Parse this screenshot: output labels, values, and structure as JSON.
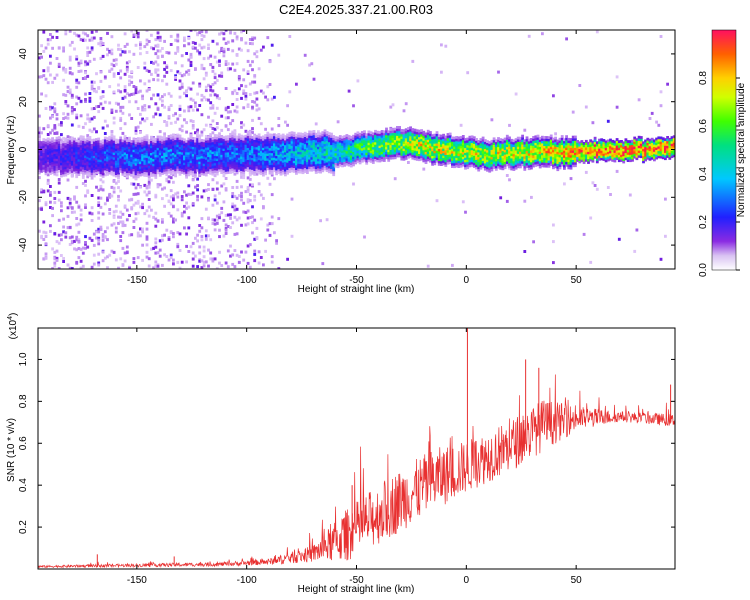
{
  "title": "C2E4.2025.337.21.00.R03",
  "colorbar": {
    "label": "Normalized spectral amplitude",
    "ticks": [
      "0.0",
      "0.2",
      "0.4",
      "0.6",
      "0.8"
    ],
    "tick_values": [
      0.0,
      0.2,
      0.4,
      0.6,
      0.8
    ],
    "range": [
      0,
      1
    ]
  },
  "chart_data": [
    {
      "type": "heatmap",
      "title": "",
      "xlabel": "Height of straight line (km)",
      "ylabel": "Frequency (Hz)",
      "xlim": [
        -195,
        95
      ],
      "ylim": [
        -50,
        50
      ],
      "xticks": [
        -150,
        -100,
        -50,
        0,
        50
      ],
      "xtick_labels": [
        "-150",
        "-100",
        "-50",
        "0",
        "50"
      ],
      "yticks": [
        -40,
        -20,
        0,
        20,
        40
      ],
      "ytick_labels": [
        "-40",
        "-20",
        "0",
        "20",
        "40"
      ],
      "colormap": "rainbow (purple=0 to red=1)",
      "band_center_hz": [
        {
          "x": -195,
          "y": -3
        },
        {
          "x": -150,
          "y": -3
        },
        {
          "x": -100,
          "y": -2
        },
        {
          "x": -60,
          "y": -1
        },
        {
          "x": -30,
          "y": 3
        },
        {
          "x": 0,
          "y": -2
        },
        {
          "x": 30,
          "y": -1
        },
        {
          "x": 60,
          "y": -1
        },
        {
          "x": 93,
          "y": 1
        }
      ],
      "band_peak_amplitude": [
        {
          "x": -195,
          "v": 0.22
        },
        {
          "x": -150,
          "v": 0.35
        },
        {
          "x": -100,
          "v": 0.35
        },
        {
          "x": -60,
          "v": 0.5
        },
        {
          "x": -20,
          "v": 0.8
        },
        {
          "x": 0,
          "v": 0.75
        },
        {
          "x": 30,
          "v": 0.8
        },
        {
          "x": 60,
          "v": 0.95
        },
        {
          "x": 93,
          "v": 1.0
        }
      ],
      "scatter_noise_region_km": [
        -195,
        -95
      ]
    },
    {
      "type": "line",
      "title": "",
      "xlabel": "Height of straight line (km)",
      "ylabel": "SNR (10 * v/v)",
      "y_multiplier": "(x10^4)",
      "y_multiplier_base": "(x10",
      "y_multiplier_exp": "4",
      "y_multiplier_close": ")",
      "xlim": [
        -195,
        95
      ],
      "ylim": [
        0,
        1.15
      ],
      "xticks": [
        -150,
        -100,
        -50,
        0,
        50
      ],
      "xtick_labels": [
        "-150",
        "-100",
        "-50",
        "0",
        "50"
      ],
      "yticks": [
        0.2,
        0.4,
        0.6,
        0.8,
        1.0
      ],
      "ytick_labels": [
        "0.2",
        "0.4",
        "0.6",
        "0.8",
        "1.0"
      ],
      "color": "#e83030",
      "series": [
        {
          "name": "SNR",
          "envelope": [
            {
              "x": -195,
              "base": 0.01,
              "amp": 0.01
            },
            {
              "x": -110,
              "base": 0.02,
              "amp": 0.02
            },
            {
              "x": -90,
              "base": 0.03,
              "amp": 0.03
            },
            {
              "x": -70,
              "base": 0.06,
              "amp": 0.08
            },
            {
              "x": -55,
              "base": 0.12,
              "amp": 0.25
            },
            {
              "x": -35,
              "base": 0.25,
              "amp": 0.3
            },
            {
              "x": -15,
              "base": 0.38,
              "amp": 0.3
            },
            {
              "x": 0,
              "base": 0.45,
              "amp": 0.25
            },
            {
              "x": 20,
              "base": 0.55,
              "amp": 0.25
            },
            {
              "x": 35,
              "base": 0.65,
              "amp": 0.25
            },
            {
              "x": 50,
              "base": 0.7,
              "amp": 0.12
            },
            {
              "x": 70,
              "base": 0.72,
              "amp": 0.05
            },
            {
              "x": 95,
              "base": 0.7,
              "amp": 0.06
            }
          ],
          "spikes": [
            {
              "x": 0.5,
              "y": 1.15
            },
            {
              "x": 27,
              "y": 1.0
            },
            {
              "x": 33,
              "y": 0.96
            },
            {
              "x": -52,
              "y": 0.4
            },
            {
              "x": 93,
              "y": 0.88
            },
            {
              "x": -168,
              "y": 0.07
            },
            {
              "x": -133,
              "y": 0.06
            }
          ]
        }
      ]
    }
  ]
}
